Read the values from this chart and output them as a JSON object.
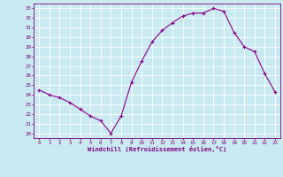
{
  "x": [
    0,
    1,
    2,
    3,
    4,
    5,
    6,
    7,
    8,
    9,
    10,
    11,
    12,
    13,
    14,
    15,
    16,
    17,
    18,
    19,
    20,
    21,
    22,
    23
  ],
  "y": [
    24.5,
    24.0,
    23.7,
    23.2,
    22.5,
    21.8,
    21.3,
    20.0,
    21.8,
    25.3,
    27.5,
    29.5,
    30.7,
    31.5,
    32.2,
    32.5,
    32.5,
    33.0,
    32.7,
    30.5,
    29.0,
    28.5,
    26.2,
    24.3
  ],
  "line_color": "#8B008B",
  "marker": "+",
  "marker_size": 3,
  "marker_lw": 0.8,
  "line_width": 0.8,
  "bg_color": "#c8eaf0",
  "grid_color": "#ffffff",
  "axis_color": "#800080",
  "xlabel": "Windchill (Refroidissement éolien,°C)",
  "ylabel_ticks": [
    20,
    21,
    22,
    23,
    24,
    25,
    26,
    27,
    28,
    29,
    30,
    31,
    32,
    33
  ],
  "xlim": [
    -0.5,
    23.5
  ],
  "ylim": [
    19.5,
    33.5
  ],
  "tick_fontsize": 4.2,
  "xlabel_fontsize": 5.0
}
